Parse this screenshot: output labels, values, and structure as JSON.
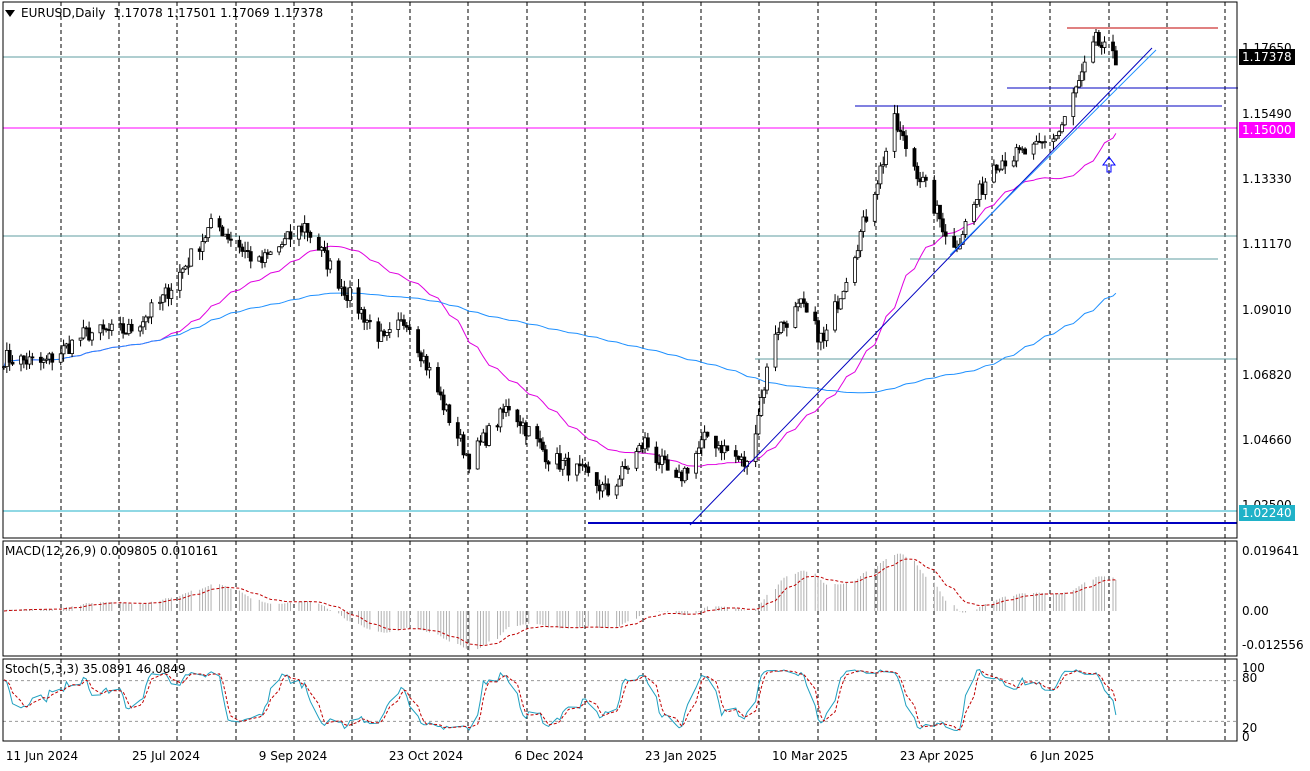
{
  "header": {
    "symbol": "EURUSD",
    "timeframe": "Daily",
    "ohlc": "1.17078 1.17501 1.17069 1.17378"
  },
  "price_axis": {
    "ticks": [
      "1.17650",
      "1.15490",
      "1.13330",
      "1.11170",
      "1.09010",
      "1.06820",
      "1.04660",
      "1.02500"
    ],
    "current_price": "1.17378",
    "level_1500": "1.15000",
    "level_0224": "1.02240"
  },
  "time_axis": [
    "11 Jun 2024",
    "25 Jul 2024",
    "9 Sep 2024",
    "23 Oct 2024",
    "6 Dec 2024",
    "23 Jan 2025",
    "10 Mar 2025",
    "23 Apr 2025",
    "6 Jun 2025"
  ],
  "macd": {
    "label": "MACD(12,26,9) 0.009805 0.010161",
    "ticks": [
      "0.019641",
      "0.00",
      "-0.012556"
    ]
  },
  "stoch": {
    "label": "Stoch(5,3,3) 35.0891 46.0849",
    "ticks": [
      "100",
      "80",
      "20",
      "0"
    ]
  },
  "colors": {
    "background": "#ffffff",
    "candle_up": "#000000",
    "candle_down": "#000000",
    "ma_fast": "#e000e0",
    "ma_slow": "#1e90ff",
    "level_magenta": "#ff00ff",
    "level_cyan": "#20b2c8",
    "level_blue": "#0000c0",
    "level_red": "#c00000",
    "arrow": "#0000ff"
  },
  "chart_data": {
    "type": "candlestick",
    "anchors": [
      [
        "2024-06-11",
        1.074
      ],
      [
        "2024-06-25",
        1.072
      ],
      [
        "2024-07-10",
        1.082
      ],
      [
        "2024-07-25",
        1.083
      ],
      [
        "2024-08-05",
        1.092
      ],
      [
        "2024-08-24",
        1.119
      ],
      [
        "2024-09-09",
        1.105
      ],
      [
        "2024-09-25",
        1.118
      ],
      [
        "2024-10-08",
        1.098
      ],
      [
        "2024-10-23",
        1.079
      ],
      [
        "2024-10-31",
        1.087
      ],
      [
        "2024-11-14",
        1.056
      ],
      [
        "2024-11-22",
        1.04
      ],
      [
        "2024-12-06",
        1.058
      ],
      [
        "2024-12-20",
        1.041
      ],
      [
        "2025-01-02",
        1.035
      ],
      [
        "2025-01-10",
        1.029
      ],
      [
        "2025-01-23",
        1.046
      ],
      [
        "2025-02-03",
        1.032
      ],
      [
        "2025-02-14",
        1.048
      ],
      [
        "2025-02-28",
        1.038
      ],
      [
        "2025-03-10",
        1.083
      ],
      [
        "2025-03-19",
        1.091
      ],
      [
        "2025-03-27",
        1.079
      ],
      [
        "2025-04-10",
        1.118
      ],
      [
        "2025-04-21",
        1.152
      ],
      [
        "2025-05-01",
        1.132
      ],
      [
        "2025-05-12",
        1.11
      ],
      [
        "2025-05-26",
        1.139
      ],
      [
        "2025-06-10",
        1.143
      ],
      [
        "2025-06-18",
        1.149
      ],
      [
        "2025-07-01",
        1.179
      ],
      [
        "2025-07-08",
        1.172
      ]
    ]
  }
}
